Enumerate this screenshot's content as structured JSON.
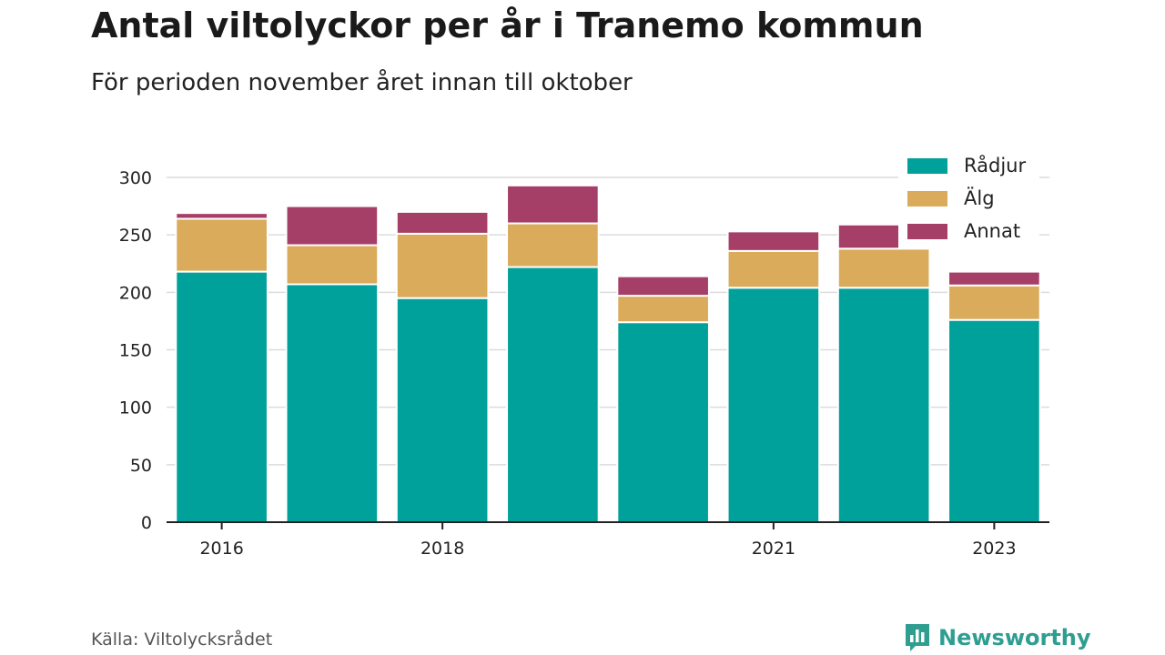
{
  "title": "Antal viltolyckor per år i Tranemo kommun",
  "subtitle": "För perioden november året innan till oktober",
  "source": "Källa: Viltolycksrådet",
  "brand": {
    "name": "Newsworthy",
    "icon": "newsworthy-logo-icon",
    "color": "#2f9e91"
  },
  "chart_data": {
    "type": "bar",
    "stacked": true,
    "categories": [
      "2016",
      "2017",
      "2018",
      "2019",
      "2020",
      "2021",
      "2022",
      "2023"
    ],
    "x_tick_labels": [
      "2016",
      "",
      "2018",
      "",
      "",
      "2021",
      "",
      "2023"
    ],
    "series": [
      {
        "name": "Rådjur",
        "color": "#00a19a",
        "values": [
          218,
          207,
          195,
          222,
          174,
          204,
          204,
          176
        ]
      },
      {
        "name": "Älg",
        "color": "#d9ab5a",
        "values": [
          46,
          34,
          56,
          38,
          23,
          32,
          34,
          30
        ]
      },
      {
        "name": "Annat",
        "color": "#a63f68",
        "values": [
          5,
          34,
          19,
          33,
          17,
          17,
          21,
          12
        ]
      }
    ],
    "ylim": [
      0,
      300
    ],
    "yticks": [
      0,
      50,
      100,
      150,
      200,
      250,
      300
    ],
    "grid": true,
    "legend_position": "top-right",
    "xlabel": "",
    "ylabel": ""
  }
}
